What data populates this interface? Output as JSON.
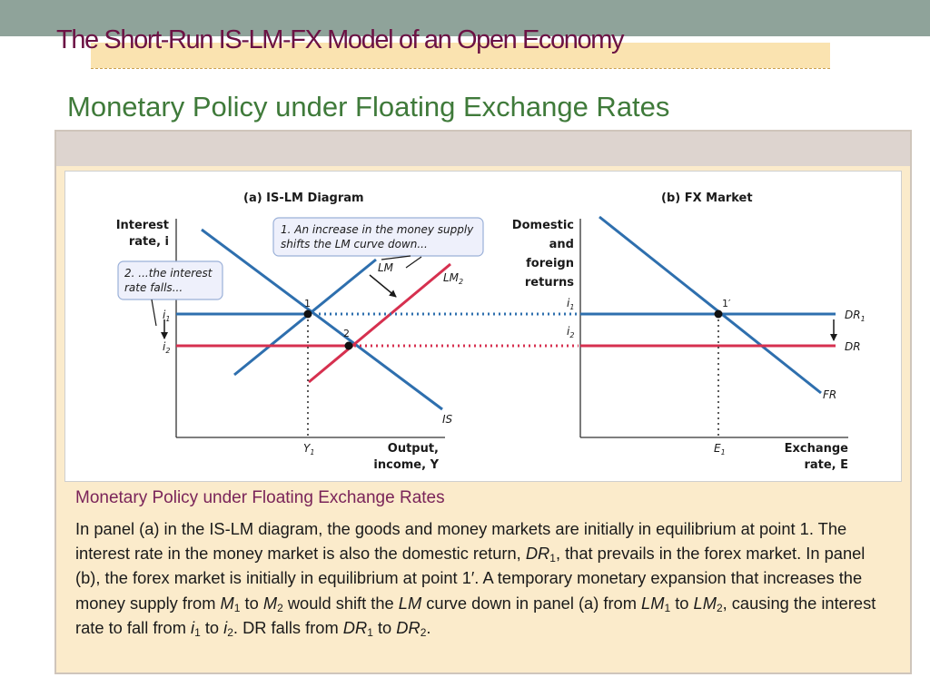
{
  "slide": {
    "title": "The Short-Run IS-LM-FX Model of an Open Economy",
    "subtitle": "Monetary Policy under Floating Exchange Rates"
  },
  "colors": {
    "blue": "#2e6fae",
    "red": "#d6304f",
    "title": "#6b1244",
    "subtitle": "#3f7a3a"
  },
  "diagram": {
    "panel_a": {
      "title": "(a) IS-LM Diagram",
      "y_axis_label": [
        "Interest",
        "rate, i"
      ],
      "x_axis_label": [
        "Output,",
        "income, Y"
      ],
      "y_ticks": [
        "i1",
        "i2"
      ],
      "x_ticks": [
        "Y1"
      ],
      "curves": [
        "LM",
        "LM2",
        "IS"
      ],
      "points": [
        "1",
        "2"
      ],
      "callout_1": [
        "1. An increase in the money supply",
        "shifts the LM curve down..."
      ],
      "callout_2": [
        "2. ...the interest",
        "rate falls..."
      ]
    },
    "panel_b": {
      "title": "(b) FX Market",
      "y_axis_label": [
        "Domestic",
        "and",
        "foreign",
        "returns"
      ],
      "x_axis_label": [
        "Exchange",
        "rate, E"
      ],
      "y_ticks": [
        "i1",
        "i2"
      ],
      "x_ticks": [
        "E1"
      ],
      "curves": [
        "DR1",
        "DR",
        "FR"
      ],
      "points": [
        "1′"
      ]
    }
  },
  "caption": {
    "title": "Monetary Policy under Floating Exchange Rates",
    "body": [
      "In panel (a) in the IS-LM diagram, the goods and money markets are initially in equilibrium at point 1. The interest rate in the money market is also the domestic return, ",
      "DR",
      "1",
      ", that prevails in the forex market. In panel (b), the forex market is initially in equilibrium at point 1′. A temporary monetary expansion that increases the money supply from ",
      "M",
      "1",
      " to ",
      "M",
      "2",
      " would shift the ",
      "LM",
      " curve down in panel (a) from ",
      "LM",
      "1",
      " to ",
      "LM",
      "2",
      ", causing the interest rate to fall from ",
      "i",
      "1",
      " to ",
      "i",
      "2",
      ". DR falls from ",
      "DR",
      "1",
      " to ",
      "DR",
      "2",
      "."
    ]
  }
}
